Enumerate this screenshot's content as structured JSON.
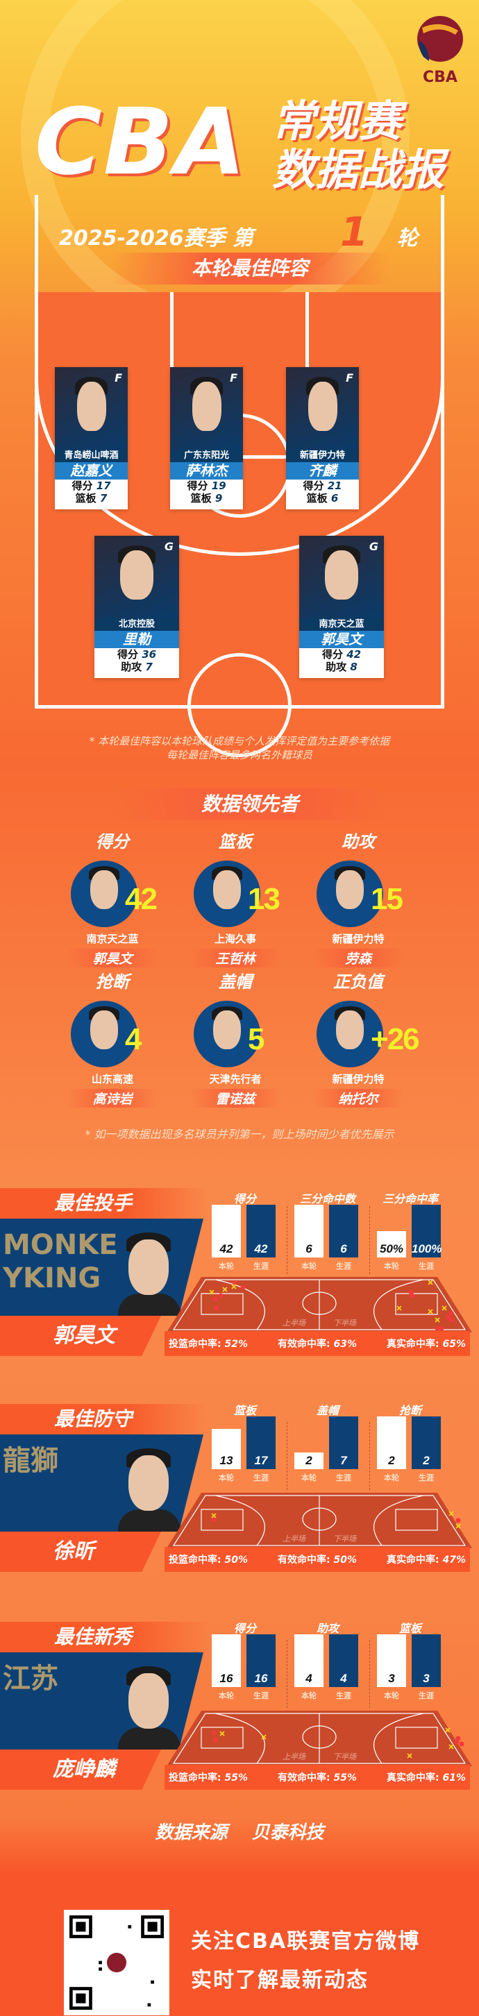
{
  "header": {
    "title_latin": "CBA",
    "title_line1": "常规赛",
    "title_line2": "数据战报",
    "season": "2025-2026赛季 第",
    "round": "1",
    "round_suffix": "轮",
    "logo_text": "CBA"
  },
  "colors": {
    "accent": "#f8552a",
    "navy": "#0b3a63",
    "blue": "#2180c8",
    "highlight": "#f2f02a",
    "yellow": "#fcd24a"
  },
  "lineup": {
    "title": "本轮最佳阵容",
    "players": [
      {
        "team": "青岛崂山啤酒",
        "name": "赵嘉义",
        "pos": "F",
        "stat1_label": "得分",
        "stat1": "17",
        "stat2_label": "篮板",
        "stat2": "7"
      },
      {
        "team": "广东东阳光",
        "name": "萨林杰",
        "pos": "F",
        "stat1_label": "得分",
        "stat1": "19",
        "stat2_label": "篮板",
        "stat2": "9"
      },
      {
        "team": "新疆伊力特",
        "name": "齐麟",
        "pos": "F",
        "stat1_label": "得分",
        "stat1": "21",
        "stat2_label": "篮板",
        "stat2": "6"
      },
      {
        "team": "北京控股",
        "name": "里勒",
        "pos": "G",
        "stat1_label": "得分",
        "stat1": "36",
        "stat2_label": "助攻",
        "stat2": "7"
      },
      {
        "team": "南京天之蓝",
        "name": "郭昊文",
        "pos": "G",
        "stat1_label": "得分",
        "stat1": "42",
        "stat2_label": "助攻",
        "stat2": "8"
      }
    ],
    "note_line1": "* 本轮最佳阵容以本轮球队成绩与个人发挥评定值为主要参考依据",
    "note_line2": "每轮最佳阵容最多两名外籍球员"
  },
  "leaders": {
    "title": "数据领先者",
    "items": [
      {
        "category": "得分",
        "value": "42",
        "team": "南京天之蓝",
        "name": "郭昊文"
      },
      {
        "category": "篮板",
        "value": "13",
        "team": "上海久事",
        "name": "王哲林"
      },
      {
        "category": "助攻",
        "value": "15",
        "team": "新疆伊力特",
        "name": "劳森"
      },
      {
        "category": "抢断",
        "value": "4",
        "team": "山东高速",
        "name": "高诗岩"
      },
      {
        "category": "盖帽",
        "value": "5",
        "team": "天津先行者",
        "name": "雷诺兹"
      },
      {
        "category": "正负值",
        "value": "+26",
        "team": "新疆伊力特",
        "name": "纳托尔"
      }
    ],
    "note": "* 如一项数据出现多名球员并列第一，则上场时间少者优先展示"
  },
  "awards": [
    {
      "title": "最佳投手",
      "name": "郭昊文",
      "team_logo_text": "MONKEYKING",
      "groups": [
        {
          "label": "得分",
          "round": 42,
          "career": 42,
          "round_text": "42",
          "career_text": "42"
        },
        {
          "label": "三分命中数",
          "round": 6,
          "career": 6,
          "round_text": "6",
          "career_text": "6"
        },
        {
          "label": "三分命中率",
          "round": 50,
          "career": 100,
          "round_text": "50%",
          "career_text": "100%"
        }
      ],
      "fg_label": "投篮命中率:",
      "fg": "52%",
      "efg_label": "有效命中率:",
      "efg": "63%",
      "ts_label": "真实命中率:",
      "ts": "65%"
    },
    {
      "title": "最佳防守",
      "name": "徐昕",
      "team_logo_text": "龍獅",
      "groups": [
        {
          "label": "篮板",
          "round": 13,
          "career": 17,
          "round_text": "13",
          "career_text": "17"
        },
        {
          "label": "盖帽",
          "round": 2,
          "career": 7,
          "round_text": "2",
          "career_text": "7"
        },
        {
          "label": "抢断",
          "round": 2,
          "career": 2,
          "round_text": "2",
          "career_text": "2"
        }
      ],
      "fg_label": "投篮命中率:",
      "fg": "50%",
      "efg_label": "有效命中率:",
      "efg": "50%",
      "ts_label": "真实命中率:",
      "ts": "47%"
    },
    {
      "title": "最佳新秀",
      "name": "庞峥麟",
      "team_logo_text": "江苏",
      "groups": [
        {
          "label": "得分",
          "round": 16,
          "career": 16,
          "round_text": "16",
          "career_text": "16"
        },
        {
          "label": "助攻",
          "round": 4,
          "career": 4,
          "round_text": "4",
          "career_text": "4"
        },
        {
          "label": "篮板",
          "round": 3,
          "career": 3,
          "round_text": "3",
          "career_text": "3"
        }
      ],
      "fg_label": "投篮命中率:",
      "fg": "55%",
      "efg_label": "有效命中率:",
      "efg": "55%",
      "ts_label": "真实命中率:",
      "ts": "61%"
    }
  ],
  "bar_labels": {
    "round": "本轮",
    "career": "生涯"
  },
  "court_labels": {
    "first_half": "上半场",
    "second_half": "下半场"
  },
  "footer": {
    "source_label": "数据来源",
    "source": "贝泰科技",
    "follow_line1": "关注CBA联赛官方微博",
    "follow_line2": "实时了解最新动态"
  }
}
